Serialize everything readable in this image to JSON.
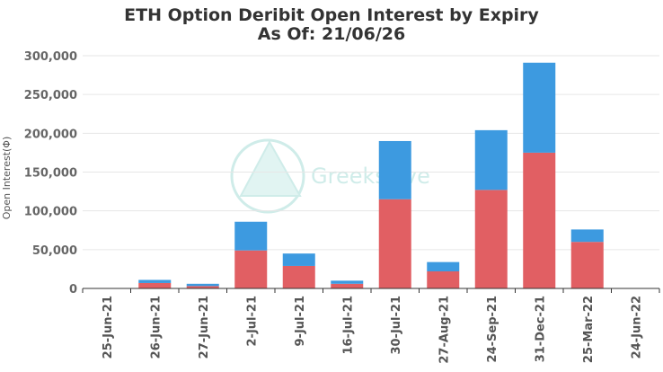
{
  "chart_data": {
    "type": "bar",
    "stacked": true,
    "title": "ETH Option Deribit Open Interest by Expiry",
    "subtitle": "As Of: 21/06/26",
    "ylabel": "Open Interest(Φ)",
    "xlabel": "",
    "ylim": [
      0,
      300000
    ],
    "yticks": [
      "0",
      "50,000",
      "100,000",
      "150,000",
      "200,000",
      "250,000",
      "300,000"
    ],
    "ytick_values": [
      0,
      50000,
      100000,
      150000,
      200000,
      250000,
      300000
    ],
    "categories": [
      "25-Jun-21",
      "26-Jun-21",
      "27-Jun-21",
      "2-Jul-21",
      "9-Jul-21",
      "16-Jul-21",
      "30-Jul-21",
      "27-Aug-21",
      "24-Sep-21",
      "31-Dec-21",
      "25-Mar-22",
      "24-Jun-22"
    ],
    "series": [
      {
        "color": "#e15f63",
        "values": [
          0,
          7000,
          3000,
          49000,
          29000,
          6000,
          115000,
          22000,
          127000,
          175000,
          60000,
          0
        ]
      },
      {
        "color": "#3d9ae0",
        "values": [
          0,
          4000,
          3000,
          37000,
          16000,
          4000,
          75000,
          12000,
          77000,
          116000,
          16000,
          0
        ]
      }
    ],
    "grid": "horizontal",
    "legend": "none"
  },
  "watermark": {
    "text": "GreeksLive",
    "color": "#a8ddd8"
  }
}
